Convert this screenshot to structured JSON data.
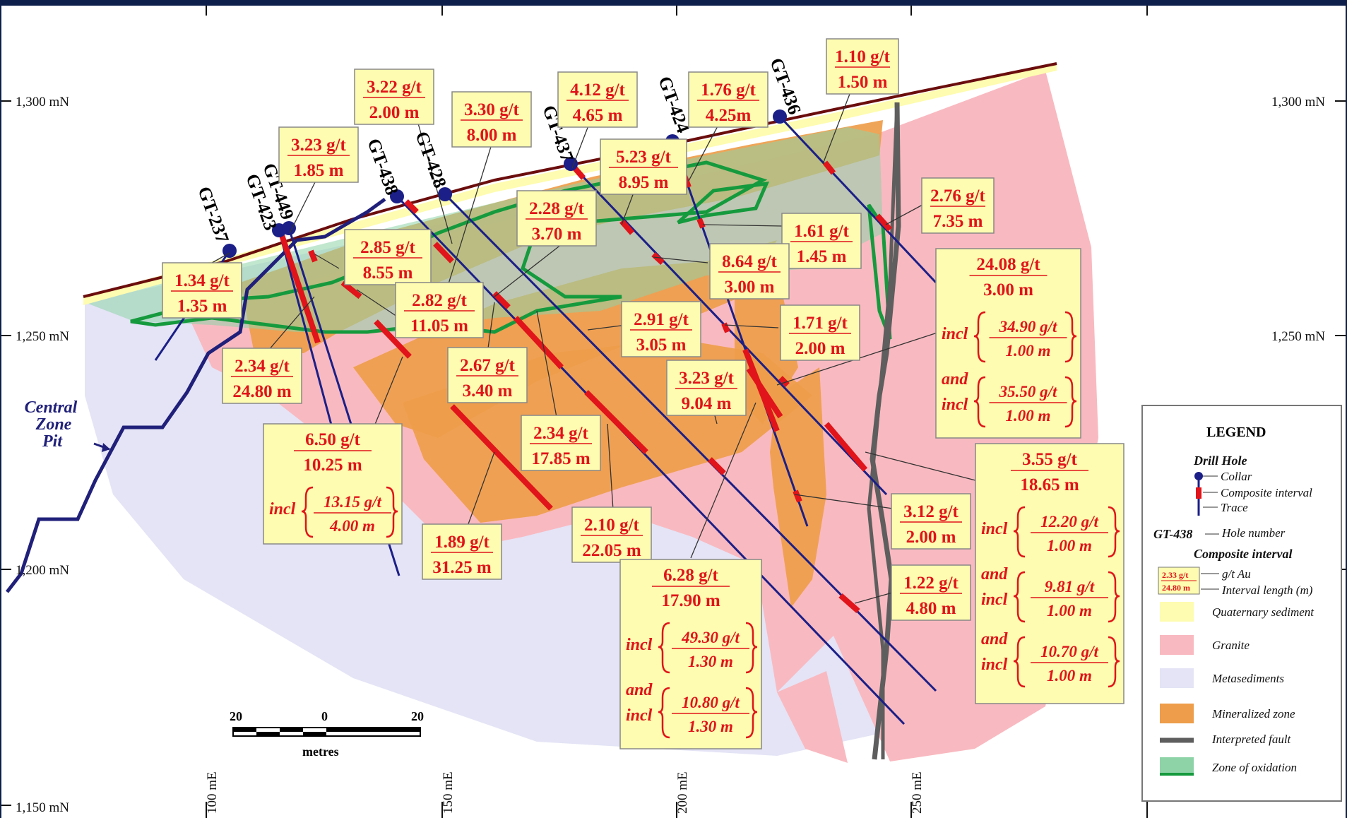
{
  "axes": {
    "northings": [
      "1,300 mN",
      "1,250 mN",
      "1,200 mN",
      "1,150 mN"
    ],
    "eastings": [
      "100 mE",
      "150 mE",
      "200 mE",
      "250 mE"
    ]
  },
  "pit_label": [
    "Central",
    "Zone",
    "Pit"
  ],
  "holes": [
    "GT-237",
    "GT-423",
    "GT-449",
    "GT-438",
    "GT-428",
    "GT-437",
    "GT-424",
    "GT-436"
  ],
  "intervals": [
    {
      "grade": "1.10 g/t",
      "len": "1.50 m"
    },
    {
      "grade": "3.22 g/t",
      "len": "2.00 m"
    },
    {
      "grade": "4.12 g/t",
      "len": "4.65 m"
    },
    {
      "grade": "1.76 g/t",
      "len": "4.25m"
    },
    {
      "grade": "3.30 g/t",
      "len": "8.00 m"
    },
    {
      "grade": "3.23 g/t",
      "len": "1.85 m"
    },
    {
      "grade": "5.23 g/t",
      "len": "8.95 m"
    },
    {
      "grade": "2.76 g/t",
      "len": "7.35 m"
    },
    {
      "grade": "2.28 g/t",
      "len": "3.70 m"
    },
    {
      "grade": "1.61 g/t",
      "len": "1.45 m"
    },
    {
      "grade": "2.85 g/t",
      "len": "8.55 m"
    },
    {
      "grade": "8.64 g/t",
      "len": "3.00 m"
    },
    {
      "grade": "1.34 g/t",
      "len": "1.35 m"
    },
    {
      "grade": "2.82 g/t",
      "len": "11.05 m"
    },
    {
      "grade": "2.91 g/t",
      "len": "3.05 m"
    },
    {
      "grade": "1.71 g/t",
      "len": "2.00 m"
    },
    {
      "grade": "2.34 g/t",
      "len": "24.80 m"
    },
    {
      "grade": "2.67 g/t",
      "len": "3.40 m"
    },
    {
      "grade": "3.23 g/t",
      "len": "9.04 m"
    },
    {
      "grade": "2.34 g/t",
      "len": "17.85 m"
    },
    {
      "grade": "3.12 g/t",
      "len": "2.00 m"
    },
    {
      "grade": "2.10 g/t",
      "len": "22.05 m"
    },
    {
      "grade": "1.89 g/t",
      "len": "31.25 m"
    },
    {
      "grade": "1.22 g/t",
      "len": "4.80 m"
    }
  ],
  "complex": [
    {
      "grade": "24.08 g/t",
      "len": "3.00 m",
      "sub": [
        {
          "w": "incl",
          "g": "34.90 g/t",
          "l": "1.00 m"
        },
        {
          "w": "and incl",
          "g": "35.50 g/t",
          "l": "1.00 m"
        }
      ]
    },
    {
      "grade": "6.50 g/t",
      "len": "10.25 m",
      "sub": [
        {
          "w": "incl",
          "g": "13.15 g/t",
          "l": "4.00 m"
        }
      ]
    },
    {
      "grade": "3.55 g/t",
      "len": "18.65 m",
      "sub": [
        {
          "w": "incl",
          "g": "12.20 g/t",
          "l": "1.00 m"
        },
        {
          "w": "and incl",
          "g": "9.81 g/t",
          "l": "1.00 m"
        },
        {
          "w": "and incl",
          "g": "10.70 g/t",
          "l": "1.00 m"
        }
      ]
    },
    {
      "grade": "6.28 g/t",
      "len": "17.90 m",
      "sub": [
        {
          "w": "incl",
          "g": "49.30 g/t",
          "l": "1.30 m"
        },
        {
          "w": "and incl",
          "g": "10.80 g/t",
          "l": "1.30 m"
        }
      ]
    }
  ],
  "scale": {
    "left": "20",
    "mid": "0",
    "right": "20",
    "unit": "metres"
  },
  "legend": {
    "title": "LEGEND",
    "drill_hole": "Drill Hole",
    "collar": "Collar",
    "composite": "Composite interval",
    "trace": "Trace",
    "hole_no_example": "GT-438",
    "hole_no": "Hole number",
    "composite_head": "Composite interval",
    "ex_grade": "2.33 g/t",
    "ex_len": "24.80 m",
    "gt_au": "g/t Au",
    "int_len": "Interval length (m)",
    "units": [
      "Quaternary sediment",
      "Granite",
      "Metasediments",
      "Mineralized zone",
      "Interpreted fault",
      "Zone of oxidation"
    ],
    "colors": [
      "#fefcb0",
      "#f9b9c0",
      "#e4e4f6",
      "#ee9d4a",
      "#5e5e5e",
      "#8ed3a8"
    ]
  }
}
